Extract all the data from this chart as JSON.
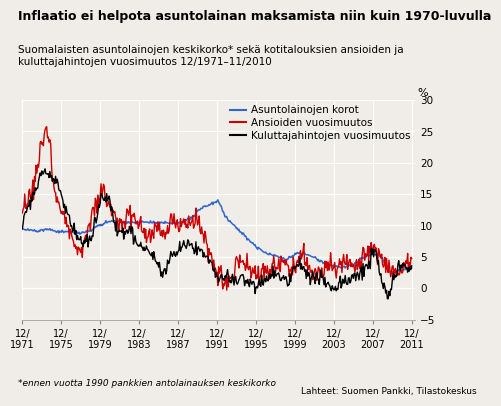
{
  "title": "Inflaatio ei helpota asuntolainan maksamista niin kuin 1970-luvulla",
  "subtitle": "Suomalaisten asuntolainojen keskikorko* sekä kotitalouksien ansioiden ja\nkuluttajahintojen vuosimuutos 12/1971–11/2010",
  "footnote": "*ennen vuotta 1990 pankkien antolainauksen keskikorko",
  "source": "Lahteet: Suomen Pankki, Tilastokeskus",
  "ylabel": "%",
  "ylim": [
    -5,
    30
  ],
  "yticks": [
    -5,
    0,
    5,
    10,
    15,
    20,
    25,
    30
  ],
  "legend": [
    {
      "label": "Asuntolainojen korot",
      "color": "#3366cc"
    },
    {
      "label": "Ansioiden vuosimuutos",
      "color": "#cc0000"
    },
    {
      "label": "Kuluttajahintojen vuosimuutos",
      "color": "#000000"
    }
  ],
  "bg_color": "#f0ede8",
  "xtick_years": [
    1971,
    1975,
    1979,
    1983,
    1987,
    1991,
    1995,
    1999,
    2003,
    2007,
    2011
  ]
}
